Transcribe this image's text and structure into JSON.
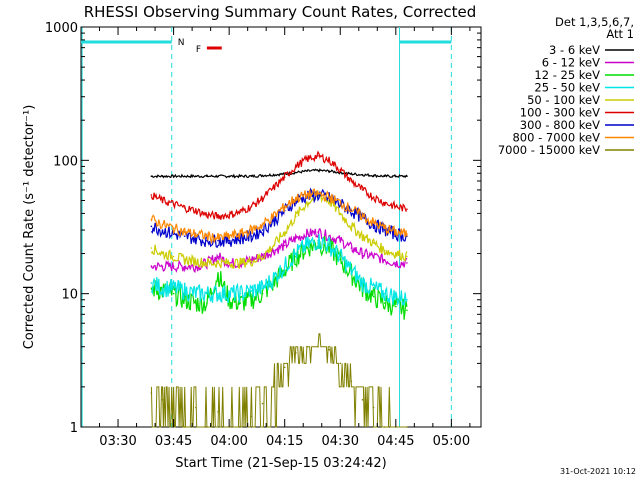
{
  "chart_data": {
    "type": "line",
    "title": "RHESSI Observing Summary Count Rates, Corrected",
    "xlabel": "Start Time (21-Sep-15 03:24:42)",
    "ylabel": "Corrected Count Rate (s⁻¹ detector⁻¹)",
    "yscale": "log",
    "ylim": [
      1,
      1000
    ],
    "xlim_minutes": [
      200,
      308
    ],
    "x_tick_labels": [
      "03:30",
      "03:45",
      "04:00",
      "04:15",
      "04:30",
      "04:45",
      "05:00"
    ],
    "x_tick_minutes": [
      210,
      225,
      240,
      255,
      270,
      285,
      300
    ],
    "y_tick_labels": [
      "1",
      "10",
      "100",
      "1000"
    ],
    "y_tick_values": [
      1,
      10,
      100,
      1000
    ],
    "legend_header": [
      "Det 1,3,5,6,7,",
      "Att 1"
    ],
    "legend_position": "right",
    "timestamp": "31-Oct-2021 10:12",
    "markers": {
      "night_label": "N",
      "flare_label": "F",
      "night_intervals_minutes": [
        [
          200,
          224.5
        ],
        [
          286,
          300
        ]
      ],
      "flare_interval_minutes": [
        234,
        238
      ],
      "saa_lines_minutes": [
        224.5,
        286,
        300
      ]
    },
    "x_minutes": [
      219,
      222,
      225,
      228,
      231,
      234,
      237,
      240,
      243,
      246,
      249,
      252,
      255,
      258,
      261,
      264,
      267,
      270,
      273,
      276,
      279,
      282,
      285,
      288
    ],
    "series": [
      {
        "name": "3 - 6 keV",
        "color": "#000000",
        "values": [
          76,
          76,
          76,
          76,
          76,
          76,
          76,
          76,
          76,
          76,
          77,
          78,
          79,
          81,
          83,
          84,
          83,
          81,
          79,
          78,
          77,
          76,
          76,
          76
        ]
      },
      {
        "name": "6 - 12 keV",
        "color": "#cc00cc",
        "values": [
          16,
          16,
          16,
          16,
          16,
          17,
          19,
          17,
          17,
          18,
          19,
          21,
          23,
          26,
          28,
          29,
          27,
          25,
          22,
          20,
          19,
          18,
          17,
          17
        ]
      },
      {
        "name": "12 - 25 keV",
        "color": "#00dd00",
        "values": [
          11,
          10.5,
          10,
          9,
          8.5,
          8.5,
          14,
          9,
          8.5,
          9,
          10,
          12,
          15,
          19,
          22,
          24,
          22,
          18,
          14,
          11,
          9.5,
          8.5,
          8,
          7.5
        ]
      },
      {
        "name": "25 - 50 keV",
        "color": "#00e5e5",
        "values": [
          12,
          11,
          11,
          10.5,
          10,
          10,
          10,
          10,
          10,
          10.5,
          11,
          13,
          16,
          20,
          23,
          25,
          23,
          19,
          15,
          12,
          11,
          10,
          9.5,
          9
        ]
      },
      {
        "name": "50 - 100 keV",
        "color": "#cccc00",
        "values": [
          22,
          20,
          19,
          18,
          17.5,
          17,
          17,
          17,
          17,
          17.5,
          19,
          23,
          29,
          38,
          48,
          55,
          50,
          40,
          32,
          27,
          24,
          21,
          20,
          19
        ]
      },
      {
        "name": "100 - 300 keV",
        "color": "#dd0000",
        "values": [
          55,
          50,
          47,
          44,
          42,
          39,
          38,
          39,
          41,
          45,
          52,
          62,
          75,
          90,
          102,
          108,
          100,
          85,
          70,
          60,
          53,
          48,
          45,
          43
        ]
      },
      {
        "name": "300 - 800 keV",
        "color": "#0000cc",
        "values": [
          32,
          30,
          28,
          27,
          26,
          25,
          25,
          25,
          26,
          27,
          30,
          35,
          42,
          50,
          54,
          55,
          52,
          47,
          42,
          37,
          33,
          30,
          28,
          27
        ]
      },
      {
        "name": "800 - 7000 keV",
        "color": "#ff8800",
        "values": [
          36,
          33,
          31,
          29,
          28,
          27,
          26,
          27,
          28,
          30,
          33,
          38,
          45,
          52,
          55,
          56,
          53,
          48,
          43,
          38,
          34,
          31,
          29,
          28
        ]
      },
      {
        "name": "7000 - 15000 keV",
        "color": "#808000",
        "values": [
          1.8,
          1.6,
          1.5,
          1.0,
          1.4,
          1.0,
          1.3,
          1.0,
          1.0,
          1.2,
          1.5,
          2.0,
          2.8,
          3.6,
          4.0,
          4.0,
          3.8,
          3.0,
          2.2,
          1.6,
          1.4,
          1.0,
          1.0,
          1.0
        ]
      }
    ]
  }
}
